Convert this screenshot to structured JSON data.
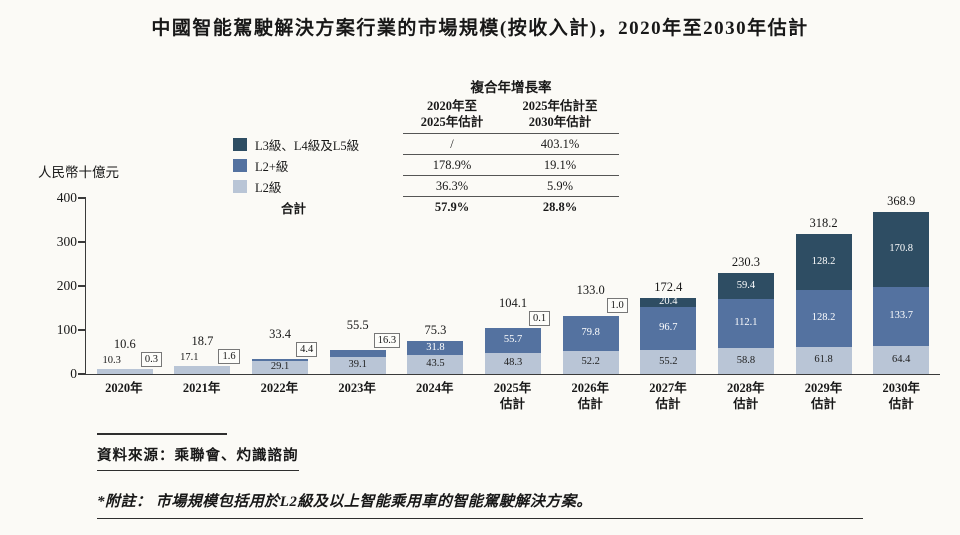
{
  "source": "資料來源：乘聯會、灼識諮詢",
  "footnote": "*附註： 市場規模包括用於L2級及以上智能乘用車的智能駕駛解決方案。",
  "cagr_table": {
    "title": "複合年增長率",
    "col_headers": [
      "2020年至\n2025年估計",
      "2025年估計至\n2030年估計"
    ],
    "rows": [
      {
        "label": "L3級、L4級及L5級",
        "swatch": "#2e4d63",
        "values": [
          "/",
          "403.1%"
        ],
        "bold": false
      },
      {
        "label": "L2+級",
        "swatch": "#5472a0",
        "values": [
          "178.9%",
          "19.1%"
        ],
        "bold": false
      },
      {
        "label": "L2級",
        "swatch": "#b9c5d6",
        "values": [
          "36.3%",
          "5.9%"
        ],
        "bold": false
      },
      {
        "label": "合計",
        "swatch": null,
        "values": [
          "57.9%",
          "28.8%"
        ],
        "bold": true
      }
    ]
  },
  "chart_data": {
    "type": "bar",
    "stacked": true,
    "title": "中國智能駕駛解決方案行業的市場規模(按收入計)，2020年至2030年估計",
    "ylabel": "人民幣十億元",
    "ylim": [
      0,
      400
    ],
    "yticks": [
      0,
      100,
      200,
      300,
      400
    ],
    "grid": false,
    "legend_position": "top-left",
    "categories": [
      "2020年",
      "2021年",
      "2022年",
      "2023年",
      "2024年",
      "2025年\n估計",
      "2026年\n估計",
      "2027年\n估計",
      "2028年\n估計",
      "2029年\n估計",
      "2030年\n估計"
    ],
    "series": [
      {
        "name": "L2級",
        "color": "#b9c5d6",
        "label_color": "#1f1f1f",
        "values": [
          10.3,
          17.1,
          29.1,
          39.1,
          43.5,
          48.3,
          52.2,
          55.2,
          58.8,
          61.8,
          64.4
        ]
      },
      {
        "name": "L2+級",
        "color": "#5472a0",
        "label_color": "#ffffff",
        "values": [
          0.3,
          1.6,
          4.4,
          16.3,
          31.8,
          55.7,
          79.8,
          96.7,
          112.1,
          128.2,
          133.7
        ]
      },
      {
        "name": "L3級、L4級及L5級",
        "color": "#2e4d63",
        "label_color": "#ffffff",
        "values": [
          0,
          0,
          0,
          0,
          0,
          0.1,
          1.0,
          20.4,
          59.4,
          128.2,
          170.8
        ]
      }
    ],
    "totals": [
      10.6,
      18.7,
      33.4,
      55.5,
      75.3,
      104.1,
      133.0,
      172.4,
      230.3,
      318.2,
      368.9
    ]
  }
}
